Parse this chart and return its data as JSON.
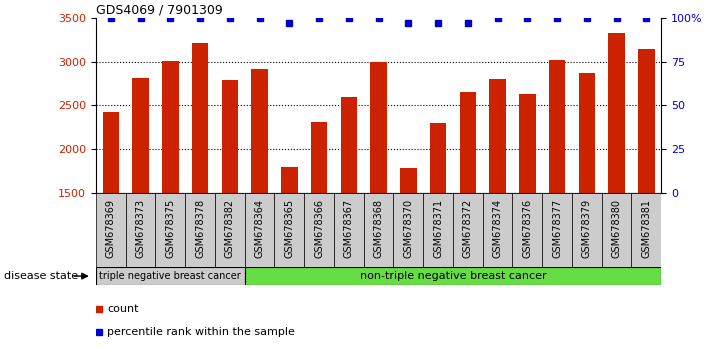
{
  "title": "GDS4069 / 7901309",
  "samples": [
    "GSM678369",
    "GSM678373",
    "GSM678375",
    "GSM678378",
    "GSM678382",
    "GSM678364",
    "GSM678365",
    "GSM678366",
    "GSM678367",
    "GSM678368",
    "GSM678370",
    "GSM678371",
    "GSM678372",
    "GSM678374",
    "GSM678376",
    "GSM678377",
    "GSM678379",
    "GSM678380",
    "GSM678381"
  ],
  "counts": [
    2420,
    2810,
    3010,
    3210,
    2790,
    2920,
    1800,
    2310,
    2600,
    2990,
    1790,
    2300,
    2650,
    2800,
    2630,
    3020,
    2870,
    3330,
    3140
  ],
  "percentile_ranks": [
    100,
    100,
    100,
    100,
    100,
    100,
    97,
    100,
    100,
    100,
    97,
    97,
    97,
    100,
    100,
    100,
    100,
    100,
    100
  ],
  "bar_color": "#cc2200",
  "dot_color": "#0000cc",
  "ylim_left": [
    1500,
    3500
  ],
  "ylim_right": [
    0,
    100
  ],
  "yticks_left": [
    1500,
    2000,
    2500,
    3000,
    3500
  ],
  "yticks_right": [
    0,
    25,
    50,
    75,
    100
  ],
  "yticklabels_right": [
    "0",
    "25",
    "50",
    "75",
    "100%"
  ],
  "dotted_grid_values": [
    2000,
    2500,
    3000
  ],
  "group1_label": "triple negative breast cancer",
  "group2_label": "non-triple negative breast cancer",
  "group1_count": 5,
  "disease_state_label": "disease state",
  "legend_count_label": "count",
  "legend_percentile_label": "percentile rank within the sample",
  "background_color": "#ffffff",
  "plot_bg_color": "#ffffff",
  "group1_color": "#cccccc",
  "group2_color": "#66dd44",
  "tick_bg_color": "#cccccc"
}
